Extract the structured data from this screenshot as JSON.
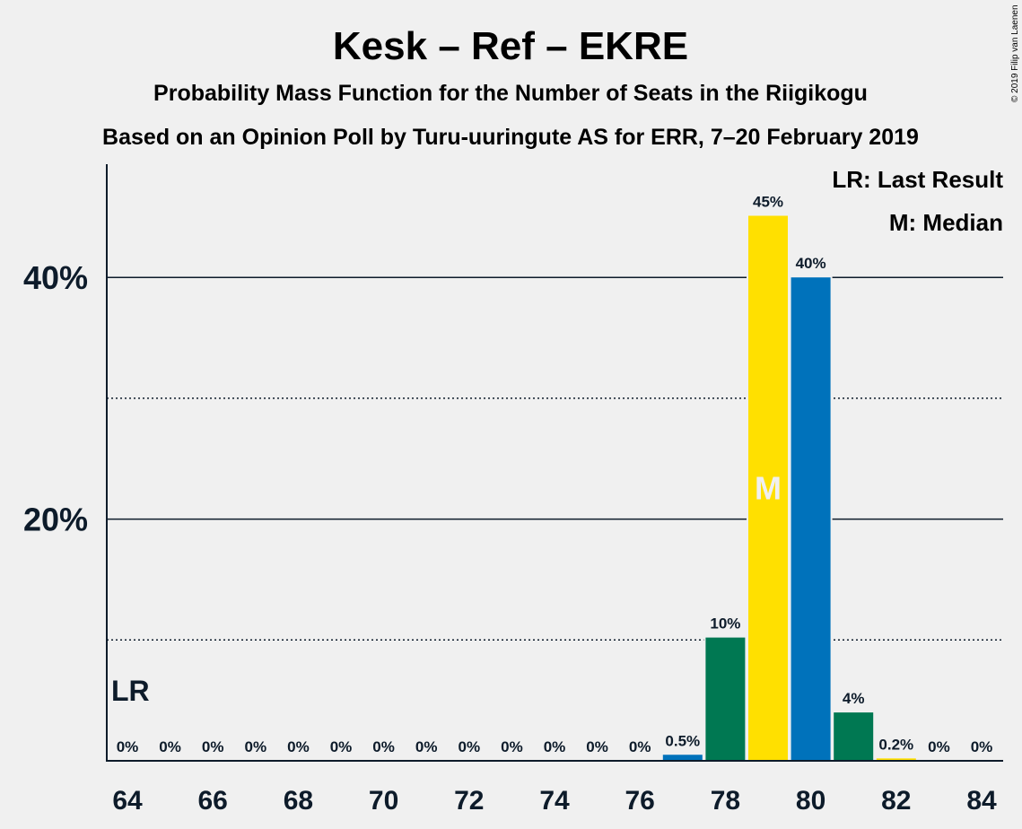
{
  "chart_data": {
    "type": "bar",
    "title": "Kesk – Ref – EKRE",
    "subtitle1": "Probability Mass Function for the Number of Seats in the Riigikogu",
    "subtitle2": "Based on an Opinion Poll by Turu-uuringute AS for ERR, 7–20 February 2019",
    "copyright": "© 2019 Filip van Laenen",
    "legend": {
      "lr": "LR: Last Result",
      "median": "M: Median",
      "placement": "top-right"
    },
    "ylim": [
      0,
      48
    ],
    "y_ticks": [
      {
        "value": 20,
        "label": "20%"
      },
      {
        "value": 40,
        "label": "40%"
      }
    ],
    "y_minor_gridlines": [
      10,
      30
    ],
    "x_ticks": [
      64,
      66,
      68,
      70,
      72,
      74,
      76,
      78,
      80,
      82,
      84
    ],
    "x": [
      64,
      65,
      66,
      67,
      68,
      69,
      70,
      71,
      72,
      73,
      74,
      75,
      76,
      77,
      78,
      79,
      80,
      81,
      82,
      83,
      84
    ],
    "values": [
      0,
      0,
      0,
      0,
      0,
      0,
      0,
      0,
      0,
      0,
      0,
      0,
      0,
      0.5,
      10.2,
      45.1,
      40,
      4,
      0.2,
      0,
      0
    ],
    "labels": [
      "0%",
      "0%",
      "0%",
      "0%",
      "0%",
      "0%",
      "0%",
      "0%",
      "0%",
      "0%",
      "0%",
      "0%",
      "0%",
      "0.5%",
      "10%",
      "45%",
      "40%",
      "4%",
      "0.2%",
      "0%",
      "0%"
    ],
    "colors": [
      "#0072bb",
      "#007852",
      "#ffe000",
      "#0072bb",
      "#007852",
      "#ffe000",
      "#0072bb",
      "#007852",
      "#ffe000",
      "#0072bb",
      "#007852",
      "#ffe000",
      "#0072bb",
      "#0072bb",
      "#007852",
      "#ffe000",
      "#0072bb",
      "#007852",
      "#ffe000",
      "#0072bb",
      "#007852"
    ],
    "last_result": {
      "x": 64,
      "label": "LR"
    },
    "median": {
      "x": 79,
      "label": "M"
    }
  }
}
